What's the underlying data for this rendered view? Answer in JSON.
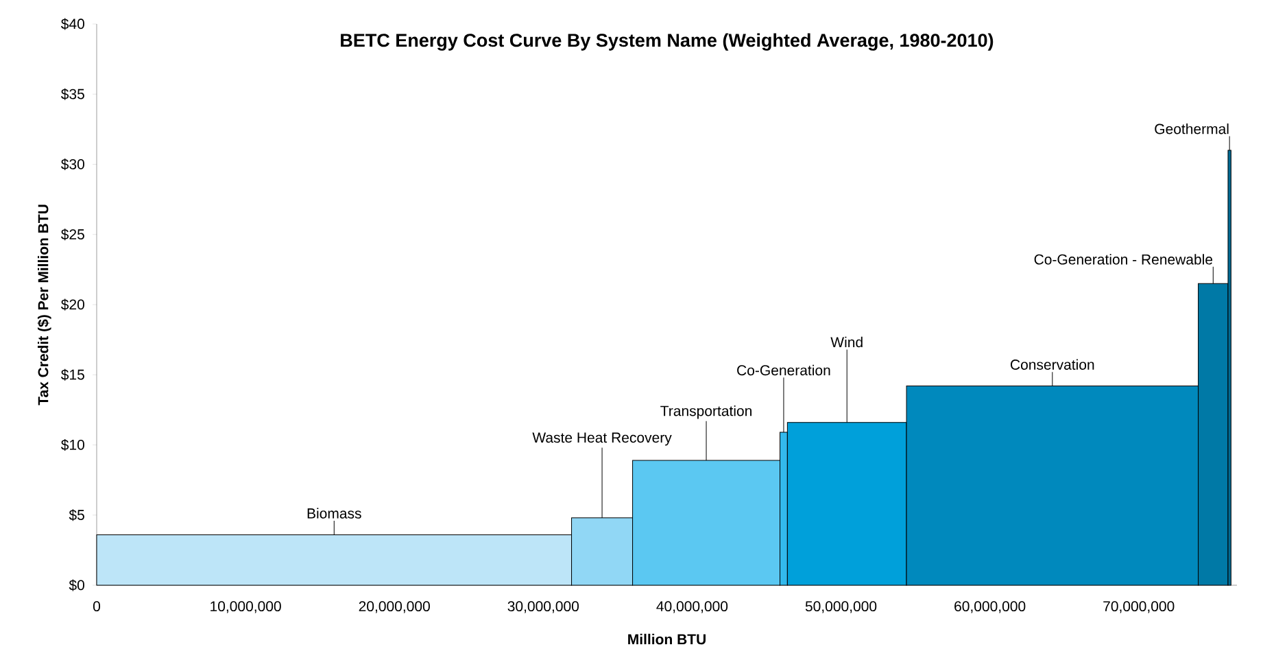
{
  "chart_data": {
    "type": "area",
    "title": "BETC Energy Cost Curve By System Name (Weighted Average, 1980-2010)",
    "xlabel": "Million BTU",
    "ylabel": "Tax Credit ($) Per Million BTU",
    "series": [
      {
        "name": "Biomass",
        "color": "#bde5f8",
        "x": [
          0,
          31900000
        ],
        "values": [
          3.6,
          3.6
        ]
      },
      {
        "name": "Waste Heat Recovery",
        "color": "#91d7f5",
        "x": [
          31900000,
          36000000
        ],
        "values": [
          4.8,
          4.8
        ]
      },
      {
        "name": "Transportation",
        "color": "#5bc8f2",
        "x": [
          36000000,
          45900000
        ],
        "values": [
          8.9,
          8.9
        ]
      },
      {
        "name": "Co-Generation",
        "color": "#33b9ec",
        "x": [
          45900000,
          46400000
        ],
        "values": [
          10.9,
          10.9
        ]
      },
      {
        "name": "Wind",
        "color": "#00a0da",
        "x": [
          46400000,
          54400000
        ],
        "values": [
          11.6,
          11.6
        ]
      },
      {
        "name": "Conservation",
        "color": "#0089bd",
        "x": [
          54400000,
          74000000
        ],
        "values": [
          14.2,
          14.2
        ]
      },
      {
        "name": "Co-Generation - Renewable",
        "color": "#0079a6",
        "x": [
          74000000,
          76000000
        ],
        "values": [
          21.5,
          21.5
        ]
      },
      {
        "name": "Geothermal",
        "color": "#006a93",
        "x": [
          76000000,
          76200000
        ],
        "values": [
          31,
          31
        ]
      }
    ],
    "xlim": [
      0,
      76600000
    ],
    "ylim": [
      0,
      40
    ],
    "xticks": [
      0,
      {
        "value": 10000000,
        "label": "10,000,000"
      },
      {
        "value": 20000000,
        "label": "20,000,000"
      },
      {
        "value": 30000000,
        "label": "30,000,000"
      },
      {
        "value": 40000000,
        "label": "40,000,000"
      },
      {
        "value": 50000000,
        "label": "50,000,000"
      },
      {
        "value": 60000000,
        "label": "60,000,000"
      },
      {
        "value": 70000000,
        "label": "70,000,000"
      }
    ],
    "yticks": [
      {
        "value": 0,
        "label": "$0"
      },
      {
        "value": 5,
        "label": "$5"
      },
      {
        "value": 10,
        "label": "$10"
      },
      {
        "value": 15,
        "label": "$15"
      },
      {
        "value": 20,
        "label": "$20"
      },
      {
        "value": 25,
        "label": "$25"
      },
      {
        "value": 30,
        "label": "$30"
      },
      {
        "value": 35,
        "label": "$35"
      },
      {
        "value": 40,
        "label": "$40"
      }
    ],
    "grid": false
  }
}
